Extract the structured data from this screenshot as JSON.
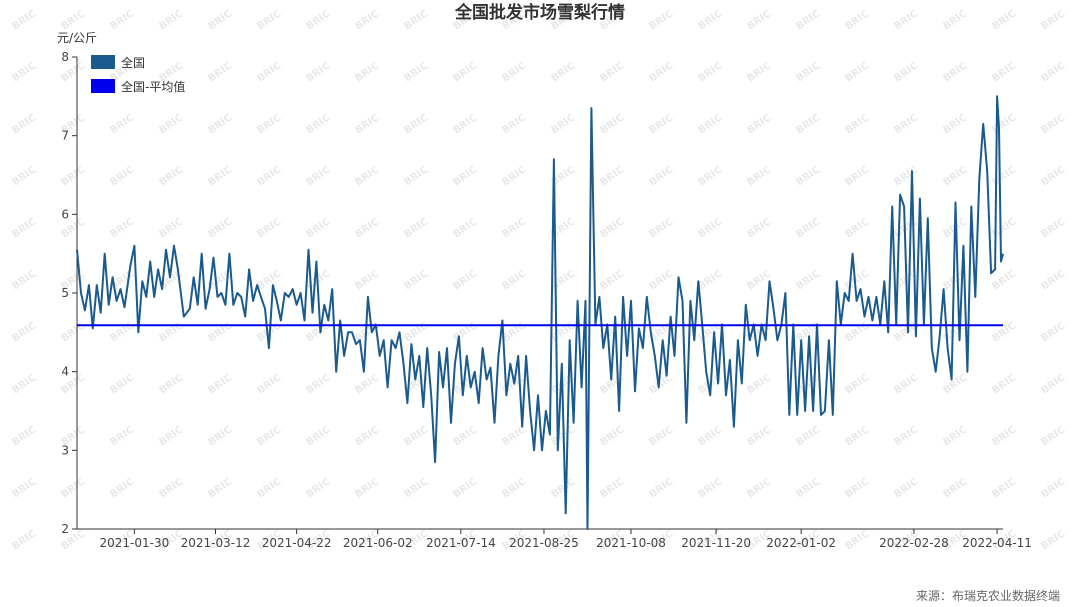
{
  "chart_data": {
    "type": "line",
    "title": "全国批发市场雪梨行情",
    "y_unit": "元/公斤",
    "ylim": [
      2,
      8
    ],
    "y_ticks": [
      2,
      3,
      4,
      5,
      6,
      7,
      8
    ],
    "x_range": [
      "2021-01-01",
      "2022-04-14"
    ],
    "x_ticks": [
      "2021-01-30",
      "2021-03-12",
      "2021-04-22",
      "2021-06-02",
      "2021-07-14",
      "2021-08-25",
      "2021-10-08",
      "2021-11-20",
      "2022-01-02",
      "2022-02-28",
      "2022-04-11"
    ],
    "legend": {
      "placement": "top-left"
    },
    "series": [
      {
        "name": "全国",
        "color": "#1b5a8e",
        "anchors": [
          [
            "2021-01-01",
            5.55
          ],
          [
            "2021-01-03",
            5.0
          ],
          [
            "2021-01-05",
            4.78
          ],
          [
            "2021-01-07",
            5.1
          ],
          [
            "2021-01-09",
            4.55
          ],
          [
            "2021-01-11",
            5.1
          ],
          [
            "2021-01-13",
            4.75
          ],
          [
            "2021-01-15",
            5.5
          ],
          [
            "2021-01-17",
            4.85
          ],
          [
            "2021-01-19",
            5.2
          ],
          [
            "2021-01-21",
            4.9
          ],
          [
            "2021-01-23",
            5.05
          ],
          [
            "2021-01-25",
            4.82
          ],
          [
            "2021-01-28",
            5.35
          ],
          [
            "2021-01-30",
            5.6
          ],
          [
            "2021-02-01",
            4.5
          ],
          [
            "2021-02-03",
            5.15
          ],
          [
            "2021-02-05",
            4.95
          ],
          [
            "2021-02-07",
            5.4
          ],
          [
            "2021-02-09",
            4.95
          ],
          [
            "2021-02-11",
            5.3
          ],
          [
            "2021-02-13",
            5.05
          ],
          [
            "2021-02-15",
            5.55
          ],
          [
            "2021-02-17",
            5.2
          ],
          [
            "2021-02-19",
            5.6
          ],
          [
            "2021-02-21",
            5.3
          ],
          [
            "2021-02-24",
            4.7
          ],
          [
            "2021-02-27",
            4.8
          ],
          [
            "2021-03-01",
            5.2
          ],
          [
            "2021-03-03",
            4.85
          ],
          [
            "2021-03-05",
            5.5
          ],
          [
            "2021-03-07",
            4.8
          ],
          [
            "2021-03-09",
            5.05
          ],
          [
            "2021-03-11",
            5.45
          ],
          [
            "2021-03-13",
            4.95
          ],
          [
            "2021-03-15",
            5.0
          ],
          [
            "2021-03-17",
            4.85
          ],
          [
            "2021-03-19",
            5.5
          ],
          [
            "2021-03-21",
            4.85
          ],
          [
            "2021-03-23",
            5.0
          ],
          [
            "2021-03-25",
            4.95
          ],
          [
            "2021-03-27",
            4.7
          ],
          [
            "2021-03-29",
            5.3
          ],
          [
            "2021-03-31",
            4.9
          ],
          [
            "2021-04-02",
            5.1
          ],
          [
            "2021-04-04",
            4.95
          ],
          [
            "2021-04-06",
            4.8
          ],
          [
            "2021-04-08",
            4.3
          ],
          [
            "2021-04-10",
            5.1
          ],
          [
            "2021-04-12",
            4.9
          ],
          [
            "2021-04-14",
            4.65
          ],
          [
            "2021-04-16",
            5.0
          ],
          [
            "2021-04-18",
            4.95
          ],
          [
            "2021-04-20",
            5.05
          ],
          [
            "2021-04-22",
            4.85
          ],
          [
            "2021-04-24",
            5.0
          ],
          [
            "2021-04-26",
            4.65
          ],
          [
            "2021-04-28",
            5.55
          ],
          [
            "2021-04-30",
            4.75
          ],
          [
            "2021-05-02",
            5.4
          ],
          [
            "2021-05-04",
            4.5
          ],
          [
            "2021-05-06",
            4.85
          ],
          [
            "2021-05-08",
            4.65
          ],
          [
            "2021-05-10",
            5.05
          ],
          [
            "2021-05-12",
            4.0
          ],
          [
            "2021-05-14",
            4.65
          ],
          [
            "2021-05-16",
            4.2
          ],
          [
            "2021-05-18",
            4.5
          ],
          [
            "2021-05-20",
            4.5
          ],
          [
            "2021-05-22",
            4.35
          ],
          [
            "2021-05-24",
            4.4
          ],
          [
            "2021-05-26",
            4.0
          ],
          [
            "2021-05-28",
            4.95
          ],
          [
            "2021-05-30",
            4.5
          ],
          [
            "2021-06-01",
            4.6
          ],
          [
            "2021-06-03",
            4.2
          ],
          [
            "2021-06-05",
            4.4
          ],
          [
            "2021-06-07",
            3.8
          ],
          [
            "2021-06-09",
            4.4
          ],
          [
            "2021-06-11",
            4.3
          ],
          [
            "2021-06-13",
            4.5
          ],
          [
            "2021-06-15",
            4.1
          ],
          [
            "2021-06-17",
            3.6
          ],
          [
            "2021-06-19",
            4.35
          ],
          [
            "2021-06-21",
            3.9
          ],
          [
            "2021-06-23",
            4.2
          ],
          [
            "2021-06-25",
            3.55
          ],
          [
            "2021-06-27",
            4.3
          ],
          [
            "2021-06-29",
            3.7
          ],
          [
            "2021-07-01",
            2.85
          ],
          [
            "2021-07-03",
            4.25
          ],
          [
            "2021-07-05",
            3.8
          ],
          [
            "2021-07-07",
            4.3
          ],
          [
            "2021-07-09",
            3.35
          ],
          [
            "2021-07-11",
            4.1
          ],
          [
            "2021-07-13",
            4.45
          ],
          [
            "2021-07-15",
            3.7
          ],
          [
            "2021-07-17",
            4.2
          ],
          [
            "2021-07-19",
            3.8
          ],
          [
            "2021-07-21",
            4.0
          ],
          [
            "2021-07-23",
            3.6
          ],
          [
            "2021-07-25",
            4.3
          ],
          [
            "2021-07-27",
            3.9
          ],
          [
            "2021-07-29",
            4.05
          ],
          [
            "2021-07-31",
            3.35
          ],
          [
            "2021-08-02",
            4.2
          ],
          [
            "2021-08-04",
            4.65
          ],
          [
            "2021-08-06",
            3.7
          ],
          [
            "2021-08-08",
            4.1
          ],
          [
            "2021-08-10",
            3.85
          ],
          [
            "2021-08-12",
            4.2
          ],
          [
            "2021-08-14",
            3.3
          ],
          [
            "2021-08-16",
            4.2
          ],
          [
            "2021-08-18",
            3.5
          ],
          [
            "2021-08-20",
            3.0
          ],
          [
            "2021-08-22",
            3.7
          ],
          [
            "2021-08-24",
            3.0
          ],
          [
            "2021-08-26",
            3.5
          ],
          [
            "2021-08-28",
            3.2
          ],
          [
            "2021-08-30",
            6.7
          ],
          [
            "2021-09-01",
            3.0
          ],
          [
            "2021-09-03",
            4.1
          ],
          [
            "2021-09-05",
            2.2
          ],
          [
            "2021-09-07",
            4.4
          ],
          [
            "2021-09-09",
            3.35
          ],
          [
            "2021-09-11",
            4.9
          ],
          [
            "2021-09-13",
            3.8
          ],
          [
            "2021-09-15",
            4.9
          ],
          [
            "2021-09-16",
            2.0
          ],
          [
            "2021-09-18",
            7.35
          ],
          [
            "2021-09-20",
            4.6
          ],
          [
            "2021-09-22",
            4.95
          ],
          [
            "2021-09-24",
            4.3
          ],
          [
            "2021-09-26",
            4.6
          ],
          [
            "2021-09-28",
            3.9
          ],
          [
            "2021-09-30",
            4.7
          ],
          [
            "2021-10-02",
            3.5
          ],
          [
            "2021-10-04",
            4.95
          ],
          [
            "2021-10-06",
            4.2
          ],
          [
            "2021-10-08",
            4.9
          ],
          [
            "2021-10-10",
            3.75
          ],
          [
            "2021-10-12",
            4.55
          ],
          [
            "2021-10-14",
            4.3
          ],
          [
            "2021-10-16",
            4.95
          ],
          [
            "2021-10-18",
            4.5
          ],
          [
            "2021-10-20",
            4.2
          ],
          [
            "2021-10-22",
            3.8
          ],
          [
            "2021-10-24",
            4.4
          ],
          [
            "2021-10-26",
            3.95
          ],
          [
            "2021-10-28",
            4.7
          ],
          [
            "2021-10-30",
            4.2
          ],
          [
            "2021-11-01",
            5.2
          ],
          [
            "2021-11-03",
            4.9
          ],
          [
            "2021-11-05",
            3.35
          ],
          [
            "2021-11-07",
            4.9
          ],
          [
            "2021-11-09",
            4.4
          ],
          [
            "2021-11-11",
            5.15
          ],
          [
            "2021-11-13",
            4.6
          ],
          [
            "2021-11-15",
            4.0
          ],
          [
            "2021-11-17",
            3.7
          ],
          [
            "2021-11-19",
            4.5
          ],
          [
            "2021-11-21",
            3.85
          ],
          [
            "2021-11-23",
            4.6
          ],
          [
            "2021-11-25",
            3.7
          ],
          [
            "2021-11-27",
            4.15
          ],
          [
            "2021-11-29",
            3.3
          ],
          [
            "2021-12-01",
            4.4
          ],
          [
            "2021-12-03",
            3.85
          ],
          [
            "2021-12-05",
            4.85
          ],
          [
            "2021-12-07",
            4.4
          ],
          [
            "2021-12-09",
            4.6
          ],
          [
            "2021-12-11",
            4.2
          ],
          [
            "2021-12-13",
            4.6
          ],
          [
            "2021-12-15",
            4.4
          ],
          [
            "2021-12-17",
            5.15
          ],
          [
            "2021-12-19",
            4.8
          ],
          [
            "2021-12-21",
            4.4
          ],
          [
            "2021-12-23",
            4.6
          ],
          [
            "2021-12-25",
            5.0
          ],
          [
            "2021-12-27",
            3.45
          ],
          [
            "2021-12-29",
            4.6
          ],
          [
            "2021-12-31",
            3.45
          ],
          [
            "2022-01-02",
            4.4
          ],
          [
            "2022-01-04",
            3.5
          ],
          [
            "2022-01-06",
            4.45
          ],
          [
            "2022-01-08",
            3.5
          ],
          [
            "2022-01-10",
            4.6
          ],
          [
            "2022-01-12",
            3.45
          ],
          [
            "2022-01-14",
            3.5
          ],
          [
            "2022-01-16",
            4.4
          ],
          [
            "2022-01-18",
            3.45
          ],
          [
            "2022-01-20",
            5.15
          ],
          [
            "2022-01-22",
            4.6
          ],
          [
            "2022-01-24",
            5.0
          ],
          [
            "2022-01-26",
            4.9
          ],
          [
            "2022-01-28",
            5.5
          ],
          [
            "2022-01-30",
            4.9
          ],
          [
            "2022-02-01",
            5.05
          ],
          [
            "2022-02-03",
            4.7
          ],
          [
            "2022-02-05",
            4.95
          ],
          [
            "2022-02-07",
            4.65
          ],
          [
            "2022-02-09",
            4.95
          ],
          [
            "2022-02-11",
            4.6
          ],
          [
            "2022-02-13",
            5.15
          ],
          [
            "2022-02-15",
            4.5
          ],
          [
            "2022-02-17",
            6.1
          ],
          [
            "2022-02-19",
            4.6
          ],
          [
            "2022-02-21",
            6.25
          ],
          [
            "2022-02-23",
            6.1
          ],
          [
            "2022-02-25",
            4.5
          ],
          [
            "2022-02-27",
            6.55
          ],
          [
            "2022-03-01",
            4.45
          ],
          [
            "2022-03-03",
            6.2
          ],
          [
            "2022-03-05",
            4.6
          ],
          [
            "2022-03-07",
            5.95
          ],
          [
            "2022-03-09",
            4.3
          ],
          [
            "2022-03-11",
            4.0
          ],
          [
            "2022-03-13",
            4.45
          ],
          [
            "2022-03-15",
            5.05
          ],
          [
            "2022-03-17",
            4.3
          ],
          [
            "2022-03-19",
            3.9
          ],
          [
            "2022-03-21",
            6.15
          ],
          [
            "2022-03-23",
            4.4
          ],
          [
            "2022-03-25",
            5.6
          ],
          [
            "2022-03-27",
            4.0
          ],
          [
            "2022-03-29",
            6.1
          ],
          [
            "2022-03-31",
            4.95
          ],
          [
            "2022-04-02",
            6.45
          ],
          [
            "2022-04-04",
            7.15
          ],
          [
            "2022-04-06",
            6.55
          ],
          [
            "2022-04-08",
            5.25
          ],
          [
            "2022-04-10",
            5.3
          ],
          [
            "2022-04-11",
            7.5
          ],
          [
            "2022-04-12",
            7.1
          ],
          [
            "2022-04-13",
            5.4
          ],
          [
            "2022-04-14",
            5.5
          ]
        ]
      },
      {
        "name": "全国-平均值",
        "color": "#0000ee",
        "value": 4.59
      }
    ]
  },
  "watermark": "BRIC",
  "source": "来源：布瑞克农业数据终端"
}
